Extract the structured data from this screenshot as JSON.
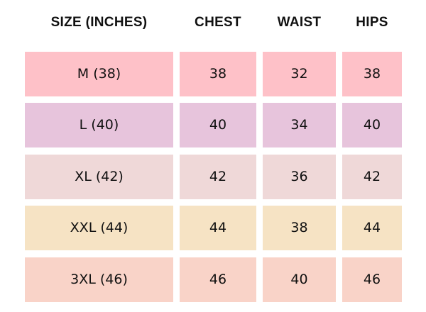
{
  "headers": [
    "SIZE (INCHES)",
    "CHEST",
    "WAIST",
    "HIPS"
  ],
  "rows": [
    {
      "cells": [
        "M (38)",
        "38",
        "32",
        "38"
      ],
      "color": "#fec1c8"
    },
    {
      "cells": [
        "L (40)",
        "40",
        "34",
        "40"
      ],
      "color": "#e7c4dc"
    },
    {
      "cells": [
        "XL (42)",
        "42",
        "36",
        "42"
      ],
      "color": "#efd8d8"
    },
    {
      "cells": [
        "XXL (44)",
        "44",
        "38",
        "44"
      ],
      "color": "#f6e3c4"
    },
    {
      "cells": [
        "3XL (46)",
        "46",
        "40",
        "46"
      ],
      "color": "#f9d3c8"
    }
  ]
}
